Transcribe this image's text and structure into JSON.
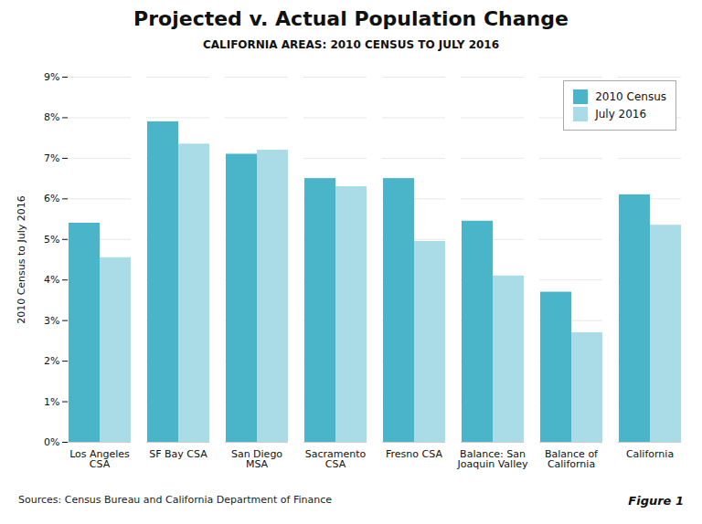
{
  "chart_data": {
    "type": "bar",
    "title": "Projected v. Actual Population Change",
    "subtitle": "CALIFORNIA AREAS: 2010 CENSUS TO JULY 2016",
    "ylabel": "2010 Census to July 2016",
    "categories": [
      "Los Angeles\nCSA",
      "SF Bay CSA",
      "San Diego\nMSA",
      "Sacramento\nCSA",
      "Fresno CSA",
      "Balance: San\nJoaquin Valley",
      "Balance of\nCalifornia",
      "California"
    ],
    "series": [
      {
        "name": "2010 Census",
        "color": "#4ab4c8",
        "values": [
          5.4,
          7.9,
          7.1,
          6.5,
          6.5,
          5.45,
          3.7,
          6.1
        ]
      },
      {
        "name": "July 2016",
        "color": "#aadce8",
        "values": [
          4.55,
          7.35,
          7.2,
          6.3,
          4.95,
          4.1,
          2.7,
          5.35
        ]
      }
    ],
    "ylim": [
      0,
      9
    ],
    "yticks": [
      {
        "value": 0,
        "label": "0%"
      },
      {
        "value": 1,
        "label": "1%"
      },
      {
        "value": 2,
        "label": "2%"
      },
      {
        "value": 3,
        "label": "3%"
      },
      {
        "value": 4,
        "label": "4%"
      },
      {
        "value": 5,
        "label": "5%"
      },
      {
        "value": 6,
        "label": "6%"
      },
      {
        "value": 7,
        "label": "7%"
      },
      {
        "value": 8,
        "label": "8%"
      },
      {
        "value": 9,
        "label": "9%"
      }
    ],
    "grid": true,
    "legend": "upper right",
    "annotations": [
      "Sources:  Census Bureau and California  Department of Finance",
      "Figure 1"
    ]
  }
}
